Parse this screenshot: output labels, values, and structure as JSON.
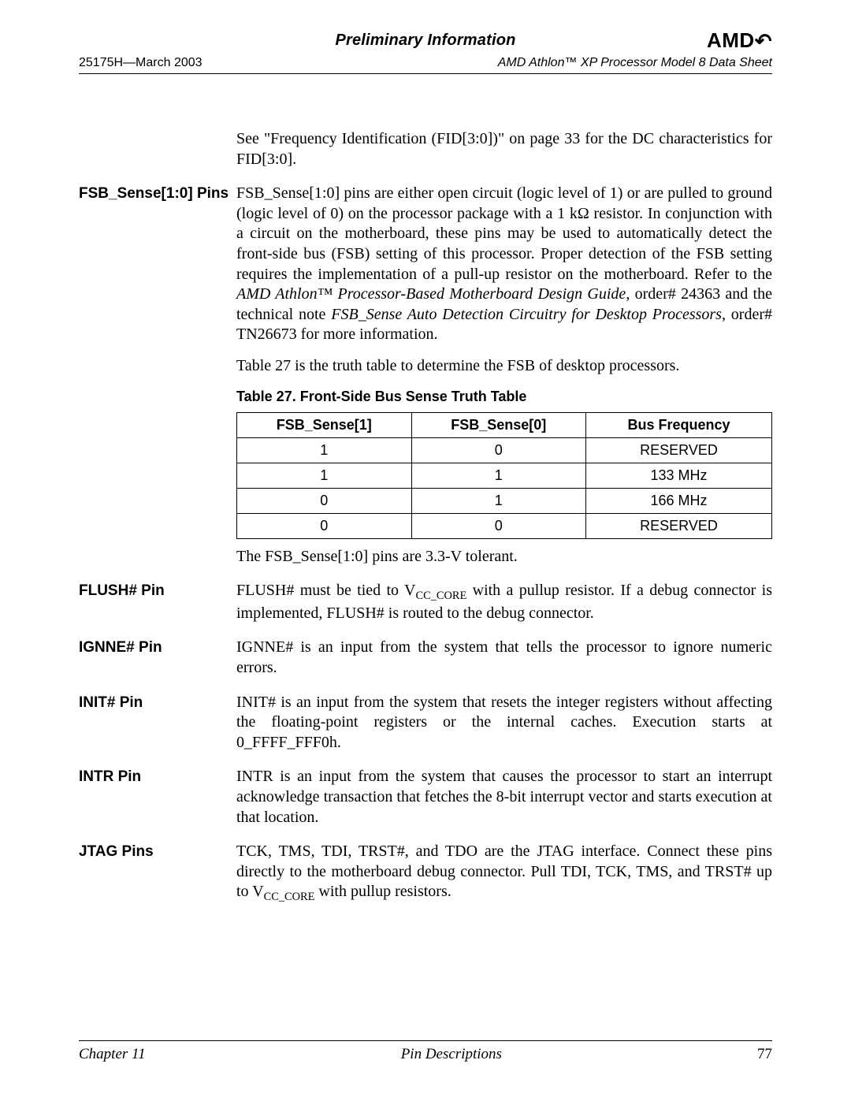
{
  "header": {
    "preliminary": "Preliminary Information",
    "logo_text": "AMD",
    "docnum": "25175H—March 2003",
    "title": "AMD Athlon™ XP Processor Model 8 Data Sheet"
  },
  "intro_para": "See \"Frequency Identification (FID[3:0])\" on page 33 for the DC characteristics for FID[3:0].",
  "sections": {
    "fsb": {
      "label": "FSB_Sense[1:0] Pins",
      "p1_a": "FSB_Sense[1:0] pins are either open circuit (logic level of 1) or are pulled to ground (logic level of 0) on the processor package with a 1 kΩ resistor. In conjunction with a circuit on the motherboard, these pins may be used to automatically detect the front-side bus (FSB) setting of this processor. Proper detection of the FSB setting requires the implementation of a pull-up resistor on the motherboard. Refer to the ",
      "p1_i1": "AMD Athlon™ Processor-Based Motherboard Design Guide",
      "p1_b": ", order# 24363 and the technical note ",
      "p1_i2": "FSB_Sense Auto Detection Circuitry for Desktop Processors",
      "p1_c": ", order# TN26673 for more information.",
      "p2": "Table 27 is the truth table to determine the FSB of desktop processors.",
      "table_caption": "Table 27.   Front-Side Bus Sense Truth Table",
      "table": {
        "headers": [
          "FSB_Sense[1]",
          "FSB_Sense[0]",
          "Bus Frequency"
        ],
        "rows": [
          [
            "1",
            "0",
            "RESERVED"
          ],
          [
            "1",
            "1",
            "133 MHz"
          ],
          [
            "0",
            "1",
            "166 MHz"
          ],
          [
            "0",
            "0",
            "RESERVED"
          ]
        ]
      },
      "p3": "The FSB_Sense[1:0] pins are 3.3-V tolerant."
    },
    "flush": {
      "label": "FLUSH# Pin",
      "t1": "FLUSH# must be tied to V",
      "sub1": "CC_CORE",
      "t2": " with a pullup resistor. If a debug connector is implemented, FLUSH# is routed to the debug connector."
    },
    "ignne": {
      "label": "IGNNE# Pin",
      "text": "IGNNE# is an input from the system that tells the processor to ignore numeric errors."
    },
    "init": {
      "label": "INIT# Pin",
      "text": "INIT# is an input from the system that resets the integer registers without affecting the floating-point registers or the internal caches. Execution starts at 0_FFFF_FFF0h."
    },
    "intr": {
      "label": "INTR Pin",
      "text": "INTR is an input from the system that causes the processor to start an interrupt acknowledge transaction that fetches the 8-bit interrupt vector and starts execution at that location."
    },
    "jtag": {
      "label": "JTAG Pins",
      "t1": "TCK, TMS, TDI, TRST#, and TDO are the JTAG interface. Connect these pins directly to the motherboard debug connector. Pull TDI, TCK, TMS, and TRST# up to V",
      "sub1": "CC_CORE",
      "t2": " with pullup resistors."
    }
  },
  "footer": {
    "chapter": "Chapter 11",
    "section": "Pin Descriptions",
    "page": "77"
  }
}
